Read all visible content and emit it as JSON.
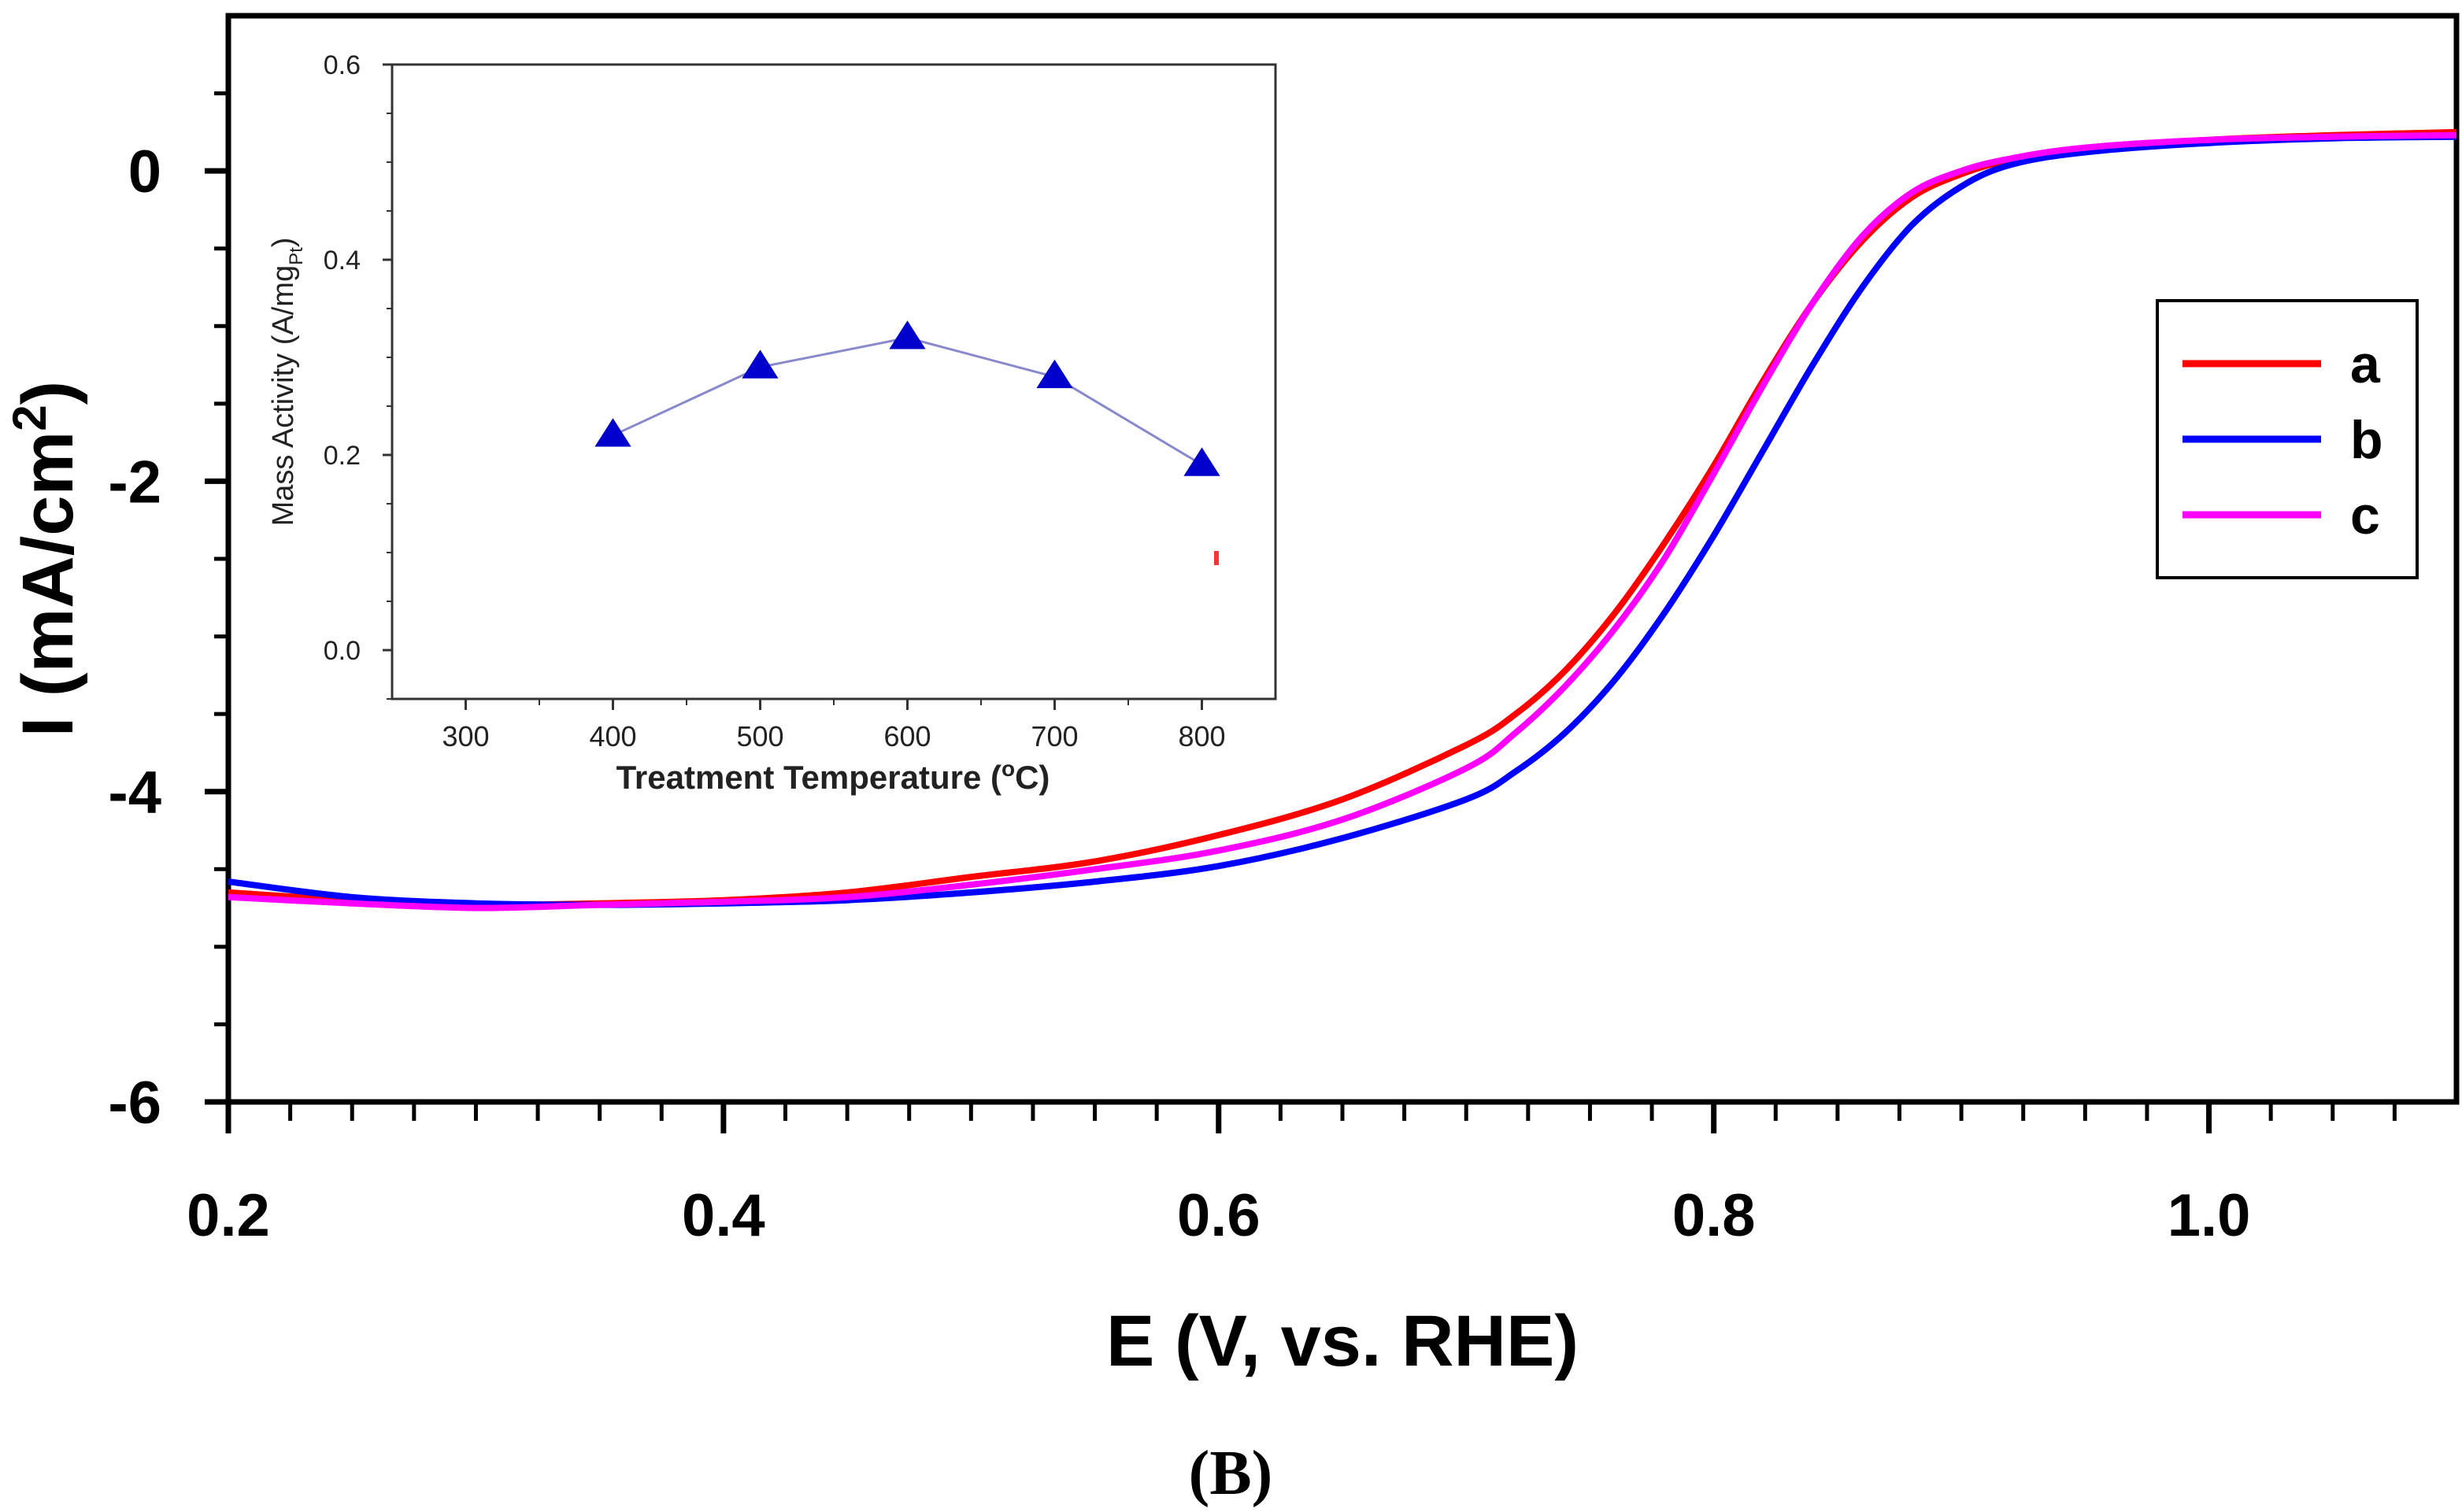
{
  "panel_label": "(B)",
  "chart_data": [
    {
      "type": "line",
      "role": "main",
      "xlabel": "E (V, vs. RHE)",
      "ylabel_prefix": "I (mA/cm",
      "ylabel_sup": "2",
      "ylabel_suffix": ")",
      "xlim": [
        0.2,
        1.1
      ],
      "ylim": [
        -6,
        1
      ],
      "xticks": [
        0.2,
        0.4,
        0.6,
        0.8,
        1.0
      ],
      "xtick_labels": [
        "0.2",
        "0.4",
        "0.6",
        "0.8",
        "1.0"
      ],
      "yticks": [
        -6,
        -4,
        -2,
        0
      ],
      "ytick_labels": [
        "-6",
        "-4",
        "-2",
        "0"
      ],
      "legend_position": "right",
      "series": [
        {
          "name": "a",
          "color": "#ff0000",
          "x": [
            0.2,
            0.25,
            0.3,
            0.35,
            0.4,
            0.45,
            0.5,
            0.55,
            0.6,
            0.65,
            0.7,
            0.72,
            0.74,
            0.76,
            0.78,
            0.8,
            0.82,
            0.84,
            0.86,
            0.88,
            0.9,
            0.92,
            0.95,
            1.0,
            1.05,
            1.1
          ],
          "y": [
            -4.65,
            -4.7,
            -4.73,
            -4.72,
            -4.7,
            -4.65,
            -4.55,
            -4.45,
            -4.28,
            -4.05,
            -3.7,
            -3.5,
            -3.22,
            -2.85,
            -2.4,
            -1.9,
            -1.35,
            -0.85,
            -0.45,
            -0.17,
            -0.02,
            0.07,
            0.14,
            0.2,
            0.23,
            0.25
          ]
        },
        {
          "name": "b",
          "color": "#0000ff",
          "x": [
            0.2,
            0.25,
            0.3,
            0.35,
            0.4,
            0.45,
            0.5,
            0.55,
            0.6,
            0.65,
            0.7,
            0.72,
            0.74,
            0.76,
            0.78,
            0.8,
            0.82,
            0.84,
            0.86,
            0.88,
            0.9,
            0.92,
            0.95,
            1.0,
            1.05,
            1.1
          ],
          "y": [
            -4.58,
            -4.68,
            -4.72,
            -4.73,
            -4.72,
            -4.7,
            -4.65,
            -4.58,
            -4.48,
            -4.3,
            -4.05,
            -3.87,
            -3.62,
            -3.28,
            -2.85,
            -2.35,
            -1.8,
            -1.25,
            -0.75,
            -0.35,
            -0.1,
            0.04,
            0.12,
            0.18,
            0.21,
            0.22
          ]
        },
        {
          "name": "c",
          "color": "#ff00ff",
          "x": [
            0.2,
            0.25,
            0.3,
            0.35,
            0.4,
            0.45,
            0.5,
            0.55,
            0.6,
            0.65,
            0.7,
            0.72,
            0.74,
            0.76,
            0.78,
            0.8,
            0.82,
            0.84,
            0.86,
            0.88,
            0.9,
            0.92,
            0.95,
            1.0,
            1.05,
            1.1
          ],
          "y": [
            -4.68,
            -4.72,
            -4.75,
            -4.73,
            -4.71,
            -4.68,
            -4.6,
            -4.5,
            -4.38,
            -4.18,
            -3.85,
            -3.62,
            -3.32,
            -2.95,
            -2.5,
            -1.95,
            -1.38,
            -0.85,
            -0.42,
            -0.14,
            0.0,
            0.08,
            0.15,
            0.2,
            0.22,
            0.23
          ]
        }
      ]
    },
    {
      "type": "line",
      "role": "inset",
      "xlabel_prefix": "Treatment Temperature (",
      "xlabel_sup": "o",
      "xlabel_suffix": "C)",
      "ylabel_prefix": "Mass Activity (A/mg",
      "ylabel_sub": "Pt",
      "ylabel_suffix": ")",
      "xlim": [
        250,
        850
      ],
      "ylim": [
        -0.05,
        0.6
      ],
      "xticks": [
        300,
        400,
        500,
        600,
        700,
        800
      ],
      "xtick_labels": [
        "300",
        "400",
        "500",
        "600",
        "700",
        "800"
      ],
      "yticks": [
        0.0,
        0.2,
        0.4,
        0.6
      ],
      "ytick_labels": [
        "0.0",
        "0.2",
        "0.4",
        "0.6"
      ],
      "series": [
        {
          "name": "mass activity",
          "color": "#0000cc",
          "line_color": "#8888cc",
          "marker": "triangle",
          "x": [
            400,
            500,
            600,
            700,
            800
          ],
          "y": [
            0.22,
            0.29,
            0.32,
            0.28,
            0.19
          ]
        }
      ]
    }
  ]
}
